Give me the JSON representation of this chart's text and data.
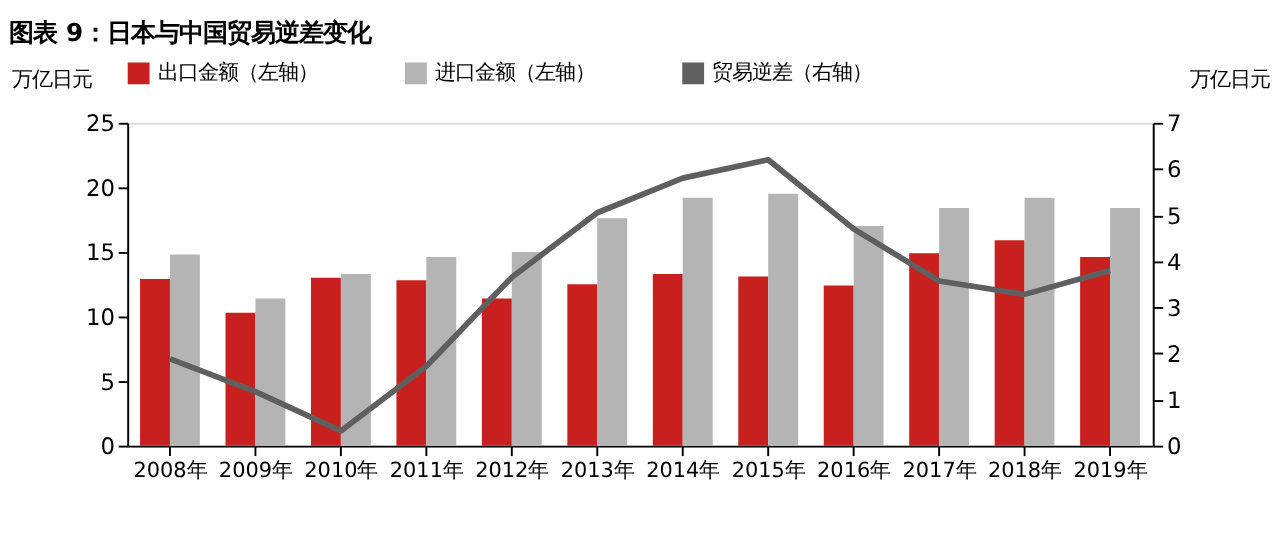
{
  "chart_data": {
    "type": "bar",
    "title": "图表 9：日本与中国贸易逆差变化",
    "ylabel": "万亿日元",
    "y2label": "万亿日元",
    "categories": [
      "2008年",
      "2009年",
      "2010年",
      "2011年",
      "2012年",
      "2013年",
      "2014年",
      "2015年",
      "2016年",
      "2017年",
      "2018年",
      "2019年"
    ],
    "series": [
      {
        "name": "出口金额（左轴）",
        "color": "#c8201f",
        "values": [
          12.9,
          10.3,
          13.0,
          12.8,
          11.4,
          12.5,
          13.3,
          13.1,
          12.4,
          14.9,
          15.9,
          14.6
        ]
      },
      {
        "name": "进口金额（左轴）",
        "color": "#b4b4b4",
        "values": [
          14.8,
          11.4,
          13.3,
          14.6,
          15.0,
          17.6,
          19.2,
          19.5,
          17.0,
          18.4,
          19.2,
          18.4
        ]
      },
      {
        "name": "贸易逆差（右轴）",
        "color": "#5f5f5f",
        "type": "line",
        "axis": "y2",
        "values": [
          1.88,
          1.17,
          0.32,
          1.72,
          3.65,
          5.05,
          5.8,
          6.2,
          4.7,
          3.57,
          3.28,
          3.8
        ]
      }
    ],
    "ylim": [
      0,
      25
    ],
    "yticks": [
      0,
      5,
      10,
      15,
      20,
      25
    ],
    "y2lim": [
      0,
      7
    ],
    "y2ticks": [
      0,
      1,
      2,
      3,
      4,
      5,
      6,
      7
    ],
    "grid": false,
    "legend": "top"
  }
}
